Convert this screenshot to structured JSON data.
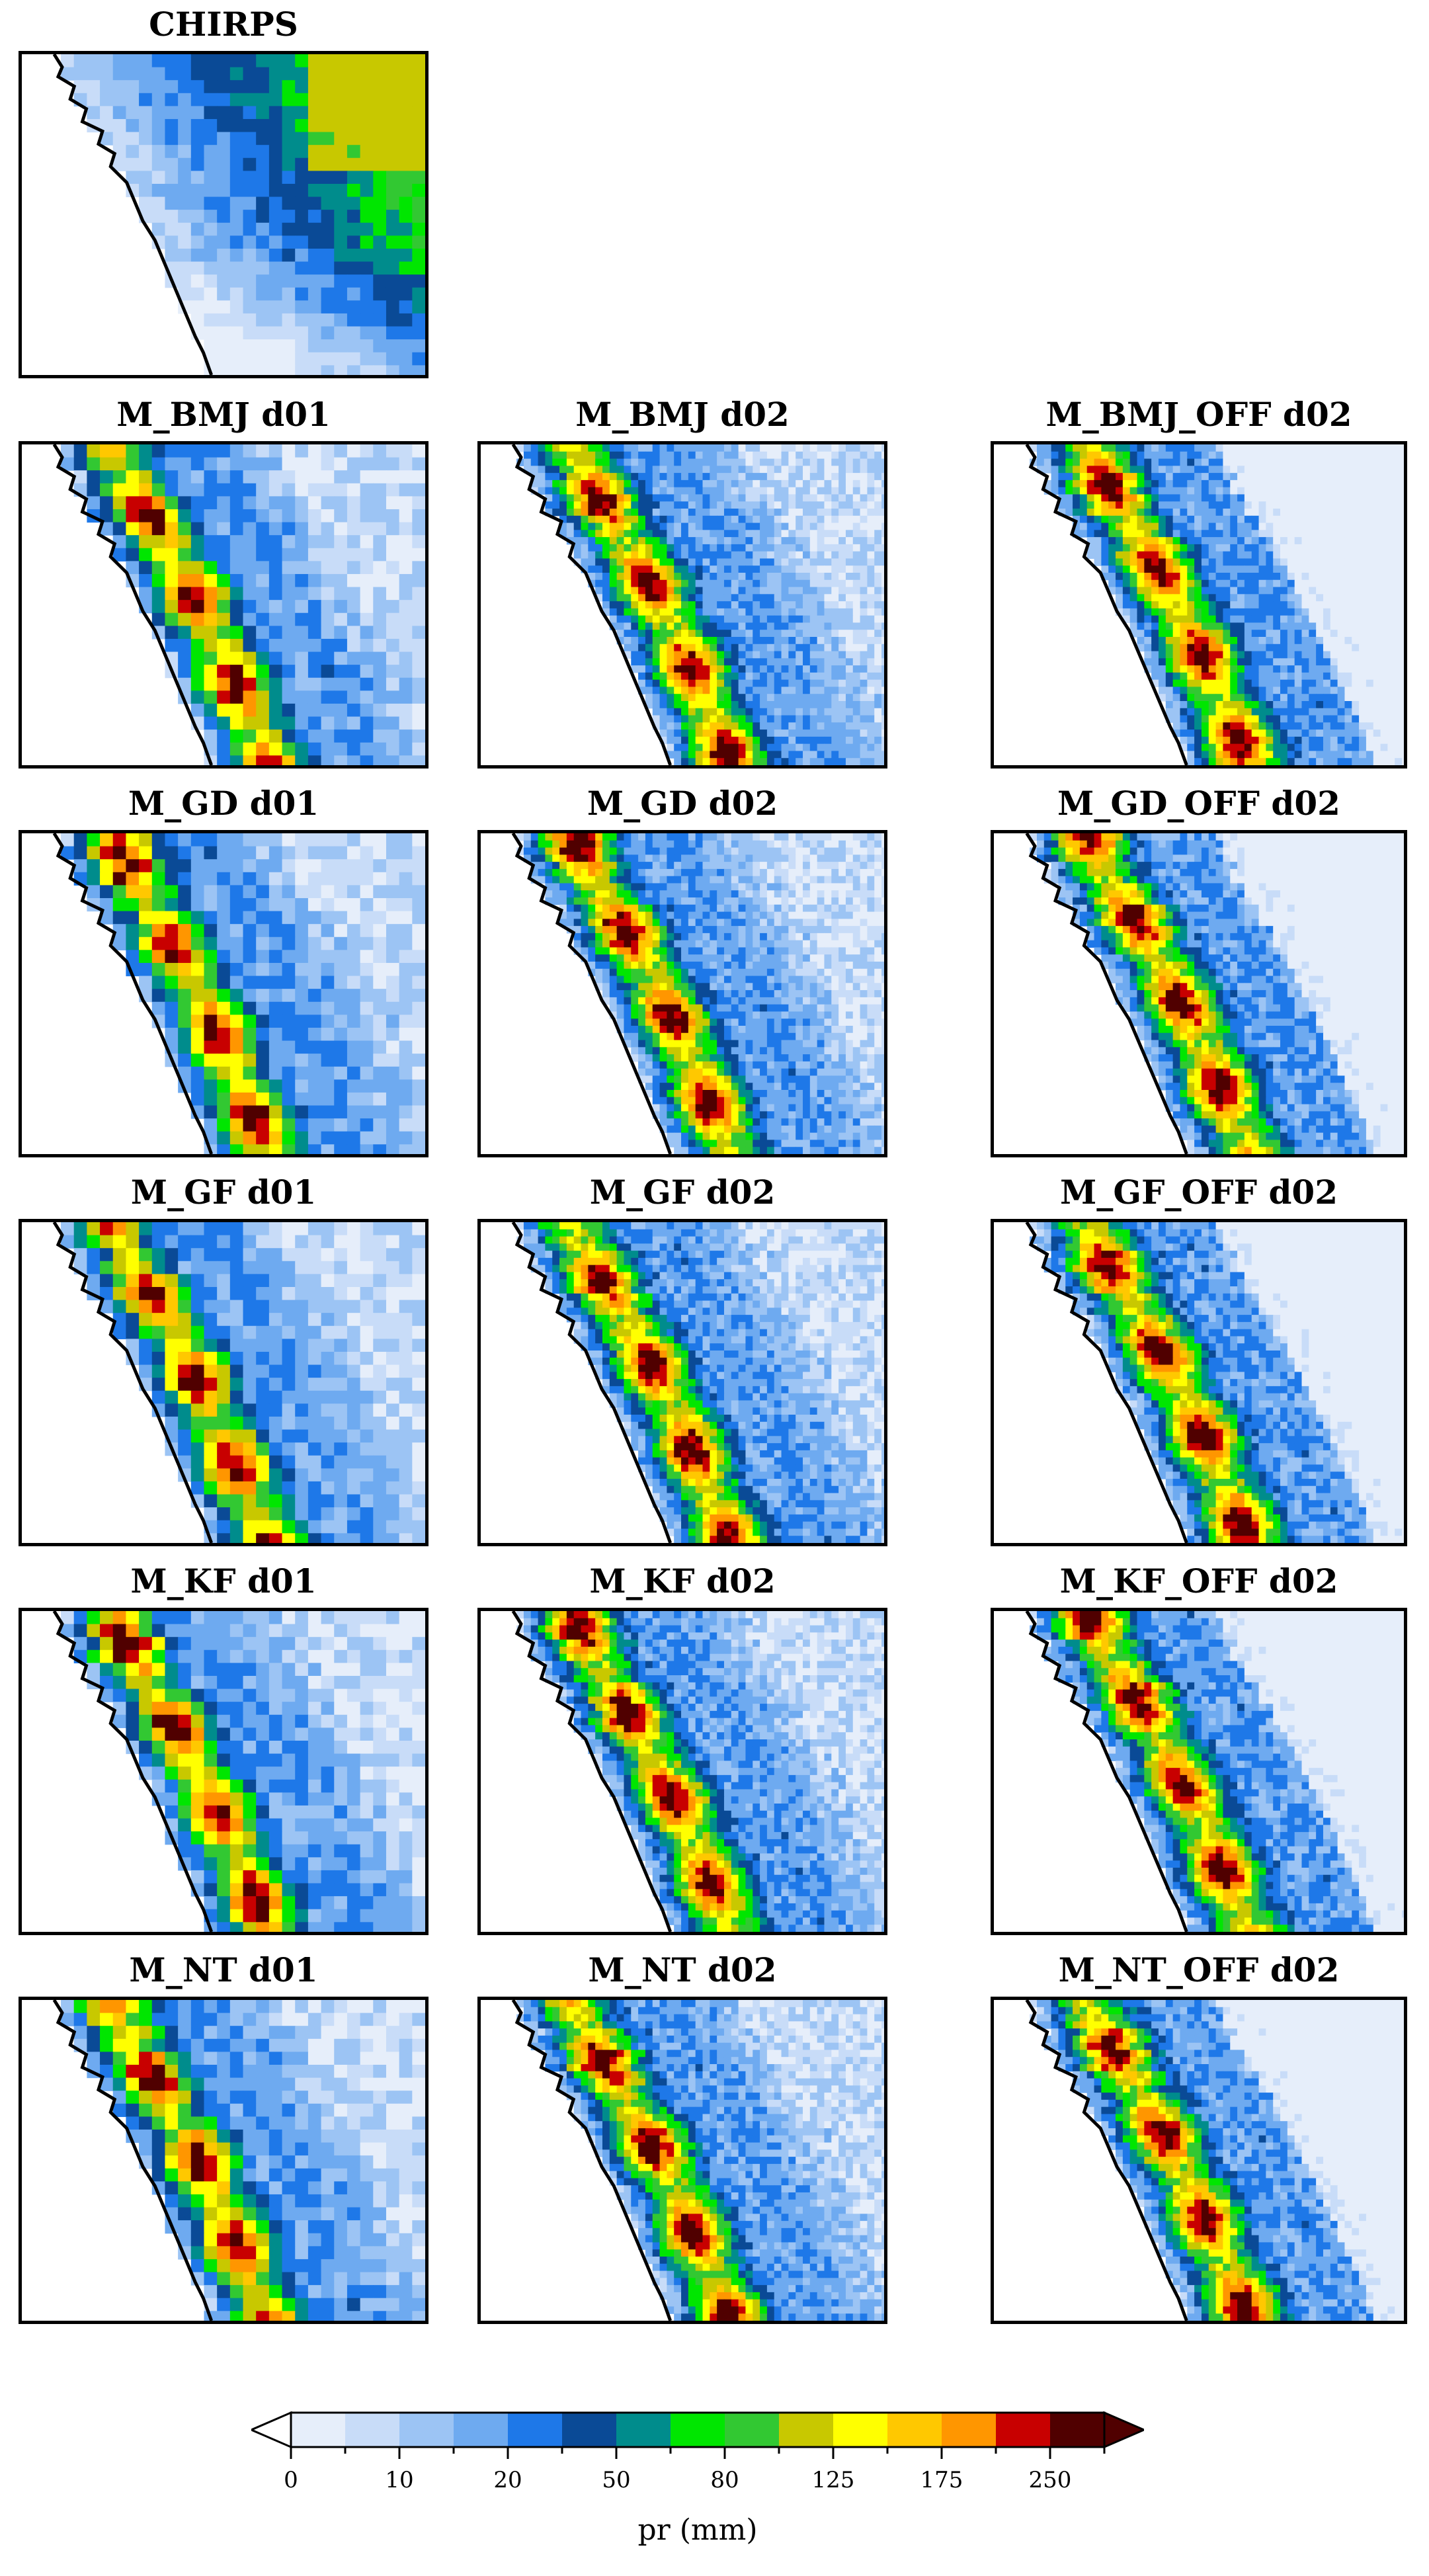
{
  "panels": [
    {
      "title": "CHIRPS",
      "style": "obs"
    },
    {
      "title": "M_BMJ d01",
      "style": "d01"
    },
    {
      "title": "M_BMJ d02",
      "style": "d02"
    },
    {
      "title": "M_BMJ_OFF d02",
      "style": "off"
    },
    {
      "title": "M_GD d01",
      "style": "d01"
    },
    {
      "title": "M_GD d02",
      "style": "d02"
    },
    {
      "title": "M_GD_OFF d02",
      "style": "off"
    },
    {
      "title": "M_GF d01",
      "style": "d01"
    },
    {
      "title": "M_GF d02",
      "style": "d02"
    },
    {
      "title": "M_GF_OFF d02",
      "style": "off"
    },
    {
      "title": "M_KF d01",
      "style": "d01"
    },
    {
      "title": "M_KF d02",
      "style": "d02"
    },
    {
      "title": "M_KF_OFF d02",
      "style": "off"
    },
    {
      "title": "M_NT d01",
      "style": "d01"
    },
    {
      "title": "M_NT d02",
      "style": "d02"
    },
    {
      "title": "M_NT_OFF d02",
      "style": "off"
    }
  ],
  "colorbar": {
    "label": "pr (mm)",
    "ticks": [
      "0",
      "10",
      "20",
      "50",
      "80",
      "125",
      "175",
      "250"
    ],
    "colors": [
      "#e6eefa",
      "#c8dcf8",
      "#9cc4f4",
      "#6eaaf0",
      "#1e78e8",
      "#0a4a96",
      "#008c8c",
      "#00e600",
      "#32c832",
      "#c8c800",
      "#ffff00",
      "#ffc800",
      "#ff9600",
      "#c80000",
      "#500000"
    ],
    "under_color": "#ffffff",
    "over_color": "#500000"
  }
}
